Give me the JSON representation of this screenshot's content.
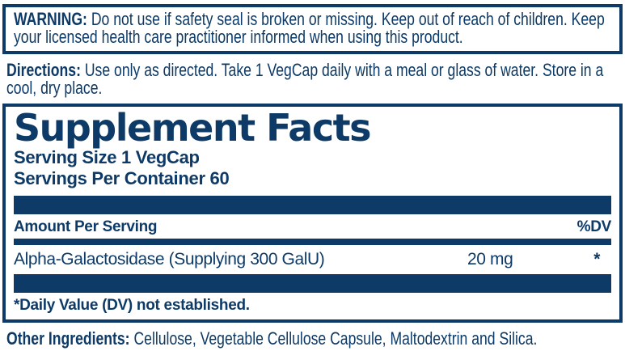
{
  "colors": {
    "navy": "#0d3a66",
    "background": "#ffffff"
  },
  "warning": {
    "label": "WARNING:",
    "text": "Do not use if safety seal is broken or missing. Keep out of reach of children. Keep your licensed health care practitioner informed when using this product."
  },
  "directions": {
    "label": "Directions:",
    "text": "Use only as directed. Take 1 VegCap daily with a meal or glass of water. Store in a cool, dry place."
  },
  "supplement_facts": {
    "title": "Supplement Facts",
    "serving_size": "Serving Size 1 VegCap",
    "servings_per_container": "Servings Per Container 60",
    "columns": {
      "amount": "Amount Per Serving",
      "dv": "%DV"
    },
    "rows": [
      {
        "name": "Alpha-Galactosidase (Supplying 300 GalU)",
        "amount": "20 mg",
        "dv": "*"
      }
    ],
    "footnote": "*Daily Value (DV) not established."
  },
  "other_ingredients": {
    "label": "Other Ingredients:",
    "text": "Cellulose, Vegetable Cellulose Capsule, Maltodextrin and Silica."
  }
}
